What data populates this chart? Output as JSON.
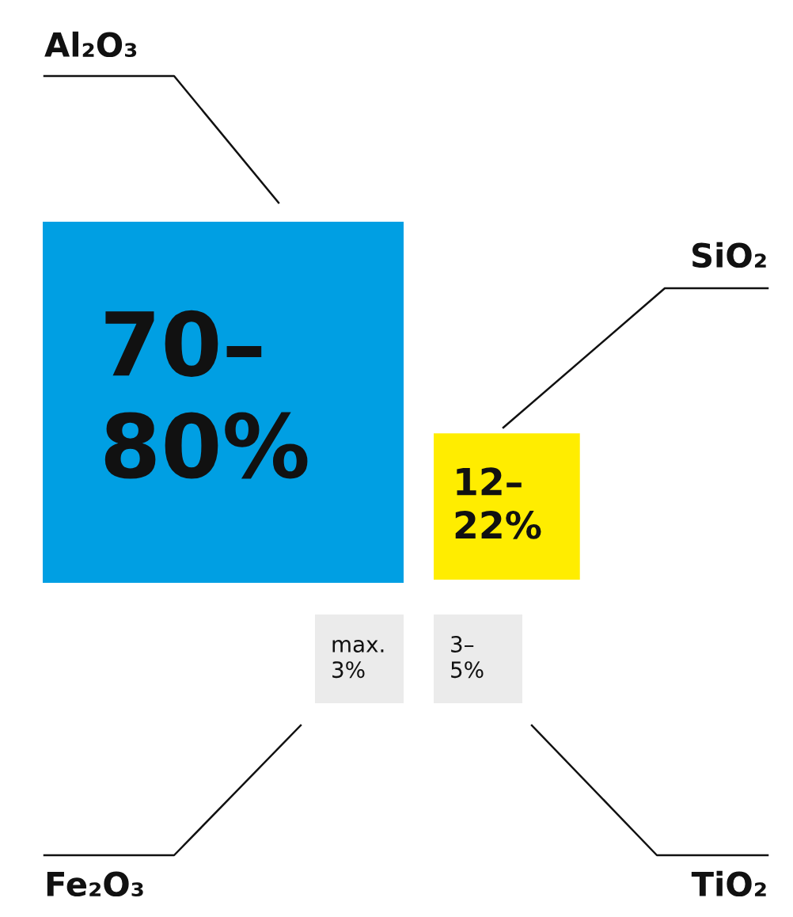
{
  "chart_data": {
    "type": "other",
    "categories": [
      "Al₂O₃",
      "SiO₂",
      "Fe₂O₃",
      "TiO₂"
    ],
    "values": [
      80,
      22,
      3,
      5
    ],
    "value_labels": [
      "70–\n80%",
      "12–\n22%",
      "max.\n3%",
      "3–\n5%"
    ],
    "colors": [
      "#009fe3",
      "#ffed00",
      "#ebebeb",
      "#ebebeb"
    ]
  }
}
